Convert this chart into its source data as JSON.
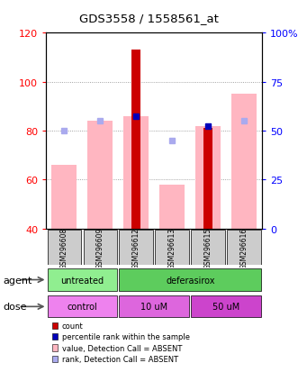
{
  "title": "GDS3558 / 1558561_at",
  "samples": [
    "GSM296608",
    "GSM296609",
    "GSM296612",
    "GSM296613",
    "GSM296615",
    "GSM296616"
  ],
  "ylim_left": [
    40,
    120
  ],
  "ylim_right": [
    0,
    100
  ],
  "yticks_left": [
    40,
    60,
    80,
    100,
    120
  ],
  "yticks_right": [
    0,
    25,
    50,
    75,
    100
  ],
  "ytick_labels_right": [
    "0",
    "25",
    "50",
    "75",
    "100%"
  ],
  "pink_bars": [
    66,
    84,
    86,
    58,
    82,
    95
  ],
  "red_bars": [
    null,
    null,
    113,
    null,
    81,
    null
  ],
  "blue_squares_left": [
    null,
    null,
    86,
    null,
    82,
    null
  ],
  "light_blue_squares_left": [
    80,
    84,
    null,
    76,
    null,
    84
  ],
  "agent_groups": [
    {
      "label": "untreated",
      "start": 0,
      "end": 2,
      "color": "#90ee90"
    },
    {
      "label": "deferasirox",
      "start": 2,
      "end": 6,
      "color": "#5dcc5d"
    }
  ],
  "dose_groups": [
    {
      "label": "control",
      "start": 0,
      "end": 2,
      "color": "#ee82ee"
    },
    {
      "label": "10 uM",
      "start": 2,
      "end": 4,
      "color": "#dd66dd"
    },
    {
      "label": "50 uM",
      "start": 4,
      "end": 6,
      "color": "#cc44cc"
    }
  ],
  "legend_items": [
    {
      "label": "count",
      "color": "#cc0000"
    },
    {
      "label": "percentile rank within the sample",
      "color": "#0000bb"
    },
    {
      "label": "value, Detection Call = ABSENT",
      "color": "#ffb6c1"
    },
    {
      "label": "rank, Detection Call = ABSENT",
      "color": "#aaaaee"
    }
  ],
  "grid_color": "#888888",
  "bar_width": 0.7,
  "red_bar_width": 0.25,
  "sample_box_color": "#cccccc",
  "bg_color": "#ffffff",
  "fig_width": 3.31,
  "fig_height": 4.14,
  "dpi": 100
}
